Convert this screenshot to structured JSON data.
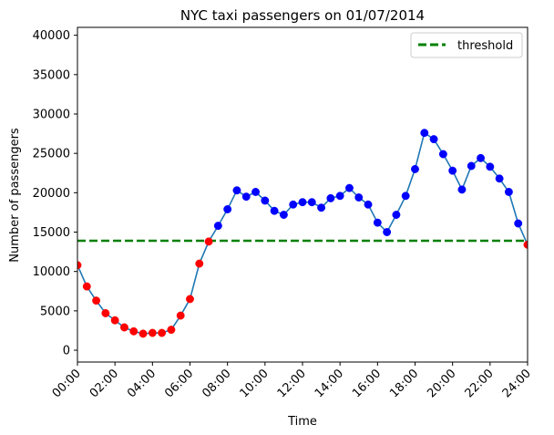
{
  "chart_data": {
    "type": "line",
    "title": "NYC taxi passengers on 01/07/2014",
    "xlabel": "Time",
    "ylabel": "Number of passengers",
    "xlim": [
      0,
      24
    ],
    "ylim": [
      -1500,
      41000
    ],
    "x_ticks": [
      0,
      2,
      4,
      6,
      8,
      10,
      12,
      14,
      16,
      18,
      20,
      22,
      24
    ],
    "x_tick_labels": [
      "00:00",
      "02:00",
      "04:00",
      "06:00",
      "08:00",
      "10:00",
      "12:00",
      "14:00",
      "16:00",
      "18:00",
      "20:00",
      "22:00",
      "24:00"
    ],
    "y_ticks": [
      0,
      5000,
      10000,
      15000,
      20000,
      25000,
      30000,
      35000,
      40000
    ],
    "y_tick_labels": [
      "0",
      "5000",
      "10000",
      "15000",
      "20000",
      "25000",
      "30000",
      "35000",
      "40000"
    ],
    "threshold": 13900,
    "legend": {
      "position": "top-right",
      "entries": [
        "threshold"
      ]
    },
    "colors": {
      "line": "#1f77b4",
      "above": "#0000ff",
      "below": "#ff0000",
      "threshold": "#008000"
    },
    "series": [
      {
        "x": [
          0,
          0.5,
          1,
          1.5,
          2,
          2.5,
          3,
          3.5,
          4,
          4.5,
          5,
          5.5,
          6,
          6.5,
          7,
          7.5,
          8,
          8.5,
          9,
          9.5,
          10,
          10.5,
          11,
          11.5,
          12,
          12.5,
          13,
          13.5,
          14,
          14.5,
          15,
          15.5,
          16,
          16.5,
          17,
          17.5,
          18,
          18.5,
          19,
          19.5,
          20,
          20.5,
          21,
          21.5,
          22,
          22.5,
          23,
          23.5,
          24
        ],
        "values": [
          10800,
          8100,
          6300,
          4700,
          3800,
          2900,
          2400,
          2100,
          2200,
          2200,
          2600,
          4400,
          6500,
          11000,
          13800,
          15800,
          17900,
          20300,
          19500,
          20100,
          19000,
          17700,
          17200,
          18500,
          18800,
          18800,
          18100,
          19300,
          19600,
          20600,
          19400,
          18500,
          16200,
          15000,
          17200,
          19600,
          23000,
          27600,
          26800,
          24900,
          22800,
          20400,
          23400,
          24400,
          23300,
          21800,
          20100,
          16100,
          13400
        ]
      }
    ]
  }
}
